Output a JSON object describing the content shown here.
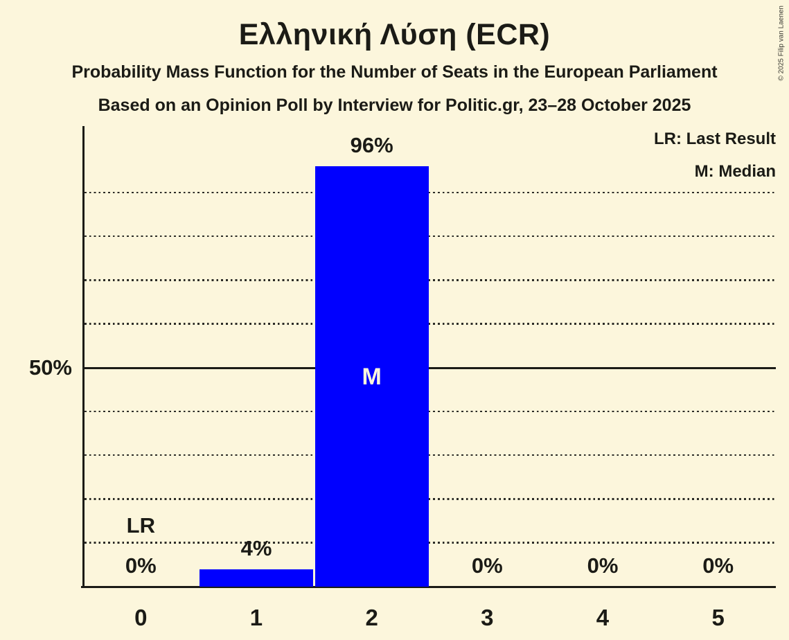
{
  "title": "Ελληνική Λύση (ECR)",
  "subtitle": "Probability Mass Function for the Number of Seats in the European Parliament",
  "poll_line": "Based on an Opinion Poll by Interview for Politic.gr, 23–28 October 2025",
  "legend": {
    "last_result": "LR: Last Result",
    "median": "M: Median"
  },
  "copyright": "© 2025 Filip van Laenen",
  "colors": {
    "background": "#FCF6DC",
    "bar": "#0000FF",
    "text": "#1B1B16",
    "in_bar_text": "#FCF6DC",
    "grid": "#2B2B26"
  },
  "chart_data": {
    "type": "bar",
    "title": "Ελληνική Λύση (ECR)",
    "xlabel": "",
    "ylabel": "",
    "categories": [
      "0",
      "1",
      "2",
      "3",
      "4",
      "5"
    ],
    "values": [
      0,
      4,
      96,
      0,
      0,
      0
    ],
    "value_labels": [
      "0%",
      "4%",
      "96%",
      "0%",
      "0%",
      "0%"
    ],
    "ylim": [
      0,
      100
    ],
    "y_axis_tick": {
      "percent": 50,
      "label": "50%"
    },
    "gridlines_percent": [
      10,
      20,
      30,
      40,
      60,
      70,
      80,
      90
    ],
    "solid_gridline_percent": 50,
    "grid": "dotted",
    "legend_position": "top-right",
    "markers": {
      "last_result": {
        "category_index": 0,
        "label": "LR"
      },
      "median": {
        "category_index": 2,
        "label": "M"
      }
    }
  }
}
